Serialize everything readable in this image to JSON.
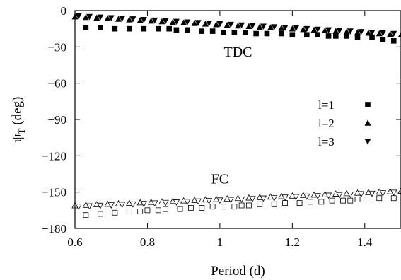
{
  "chart_data": {
    "type": "scatter",
    "title": "",
    "xlabel": "Period (d)",
    "ylabel_main": "ψ",
    "ylabel_sub": "T",
    "ylabel_unit": " (deg)",
    "xlim": [
      0.6,
      1.5
    ],
    "ylim": [
      -180,
      0
    ],
    "x_ticks": [
      0.6,
      0.8,
      1.0,
      1.2,
      1.4
    ],
    "x_tick_labels": [
      "0.6",
      "0.8",
      "1",
      "1.2",
      "1.4"
    ],
    "y_ticks": [
      0,
      -30,
      -60,
      -90,
      -120,
      -150,
      -180
    ],
    "y_tick_labels": [
      "0",
      "−30",
      "−60",
      "−90",
      "−120",
      "−150",
      "−180"
    ],
    "grid": false,
    "legend_position": "right",
    "legend": [
      {
        "label": "l=1",
        "marker": "square"
      },
      {
        "label": "l=2",
        "marker": "triangle-up"
      },
      {
        "label": "l=3",
        "marker": "triangle-down"
      }
    ],
    "annotations": [
      {
        "text": "TDC",
        "x": 1.05,
        "y": -38
      },
      {
        "text": "FC",
        "x": 1.0,
        "y": -143
      }
    ],
    "groups": [
      {
        "name": "TDC",
        "fill": "filled",
        "series": [
          {
            "name": "l=1",
            "marker": "square",
            "x": [
              0.63,
              0.67,
              0.71,
              0.75,
              0.79,
              0.83,
              0.86,
              0.88,
              0.91,
              0.95,
              0.98,
              1.01,
              1.04,
              1.07,
              1.1,
              1.13,
              1.17,
              1.2,
              1.24,
              1.27,
              1.3,
              1.32,
              1.35,
              1.38,
              1.42,
              1.45,
              1.48
            ],
            "y": [
              -14,
              -14,
              -15,
              -15,
              -15,
              -15,
              -15,
              -16,
              -16,
              -17,
              -17,
              -18,
              -18,
              -18,
              -19,
              -19,
              -19,
              -20,
              -20,
              -20,
              -21,
              -21,
              -21,
              -22,
              -22,
              -24,
              -25
            ]
          },
          {
            "name": "l=2",
            "marker": "triangle-up",
            "x": [
              0.6,
              0.63,
              0.66,
              0.69,
              0.72,
              0.75,
              0.78,
              0.81,
              0.84,
              0.87,
              0.9,
              0.93,
              0.96,
              0.99,
              1.02,
              1.05,
              1.08,
              1.11,
              1.14,
              1.17,
              1.2,
              1.23,
              1.26,
              1.29,
              1.32,
              1.35,
              1.38,
              1.41,
              1.44,
              1.47,
              1.5
            ],
            "y": [
              -5,
              -5.5,
              -6,
              -6.5,
              -7,
              -7.5,
              -8,
              -8.5,
              -9,
              -9.5,
              -10,
              -10.5,
              -11,
              -11.5,
              -12,
              -12.5,
              -13,
              -13.5,
              -14,
              -14.5,
              -15,
              -15.5,
              -16,
              -16.5,
              -17,
              -17.5,
              -18,
              -18.5,
              -19,
              -19.5,
              -20
            ]
          },
          {
            "name": "l=3",
            "marker": "triangle-down",
            "x": [
              0.61,
              0.64,
              0.67,
              0.7,
              0.73,
              0.76,
              0.79,
              0.82,
              0.85,
              0.88,
              0.91,
              0.94,
              0.97,
              1.0,
              1.03,
              1.06,
              1.09,
              1.12,
              1.15,
              1.18,
              1.21,
              1.24,
              1.27,
              1.3,
              1.33,
              1.36,
              1.39,
              1.42,
              1.45,
              1.48
            ],
            "y": [
              -4.5,
              -5,
              -5.5,
              -6,
              -6.5,
              -7,
              -7.5,
              -8,
              -8.5,
              -9,
              -9.5,
              -10,
              -10.5,
              -11,
              -11.5,
              -12,
              -12.5,
              -13,
              -13.5,
              -14,
              -14.5,
              -15,
              -15.5,
              -16,
              -16.5,
              -17,
              -17.5,
              -18,
              -18.5,
              -19
            ]
          }
        ]
      },
      {
        "name": "FC",
        "fill": "open",
        "series": [
          {
            "name": "l=1",
            "marker": "square",
            "x": [
              0.63,
              0.67,
              0.71,
              0.75,
              0.78,
              0.8,
              0.83,
              0.85,
              0.89,
              0.92,
              0.95,
              0.98,
              1.01,
              1.04,
              1.06,
              1.08,
              1.11,
              1.15,
              1.18,
              1.22,
              1.25,
              1.28,
              1.31,
              1.34,
              1.36,
              1.38,
              1.41,
              1.44,
              1.48
            ],
            "y": [
              -169,
              -168,
              -167,
              -166,
              -166,
              -165,
              -165,
              -164,
              -164,
              -163,
              -163,
              -162,
              -162,
              -162,
              -161,
              -161,
              -160,
              -160,
              -159,
              -159,
              -158,
              -158,
              -157,
              -157,
              -157,
              -156,
              -156,
              -155,
              -155
            ]
          },
          {
            "name": "l=2",
            "marker": "triangle-up",
            "x": [
              0.6,
              0.63,
              0.66,
              0.69,
              0.72,
              0.75,
              0.78,
              0.81,
              0.84,
              0.87,
              0.9,
              0.93,
              0.96,
              0.99,
              1.02,
              1.05,
              1.08,
              1.11,
              1.14,
              1.17,
              1.2,
              1.23,
              1.26,
              1.29,
              1.32,
              1.35,
              1.38,
              1.41,
              1.44,
              1.47,
              1.5
            ],
            "y": [
              -161,
              -160.6,
              -160.2,
              -159.8,
              -159.4,
              -159,
              -158.6,
              -158.2,
              -157.8,
              -157.4,
              -157,
              -156.6,
              -156.2,
              -155.8,
              -155.4,
              -155,
              -154.6,
              -154.2,
              -153.8,
              -153.4,
              -153,
              -152.6,
              -152.2,
              -151.8,
              -151.4,
              -151,
              -150.6,
              -150.2,
              -149.8,
              -149.4,
              -149
            ]
          },
          {
            "name": "l=3",
            "marker": "triangle-down",
            "x": [
              0.61,
              0.64,
              0.67,
              0.7,
              0.73,
              0.76,
              0.79,
              0.82,
              0.85,
              0.88,
              0.91,
              0.94,
              0.97,
              1.0,
              1.03,
              1.06,
              1.09,
              1.12,
              1.15,
              1.18,
              1.21,
              1.24,
              1.27,
              1.3,
              1.33,
              1.36,
              1.39,
              1.42,
              1.45,
              1.48
            ],
            "y": [
              -162,
              -161.6,
              -161.2,
              -160.8,
              -160.4,
              -160,
              -159.6,
              -159.2,
              -158.8,
              -158.4,
              -158,
              -157.6,
              -157.2,
              -156.8,
              -156.4,
              -156,
              -155.6,
              -155.2,
              -154.8,
              -154.4,
              -154,
              -153.6,
              -153.2,
              -152.8,
              -152.4,
              -152,
              -151.6,
              -151.2,
              -150.8,
              -150.4
            ]
          }
        ]
      }
    ]
  }
}
